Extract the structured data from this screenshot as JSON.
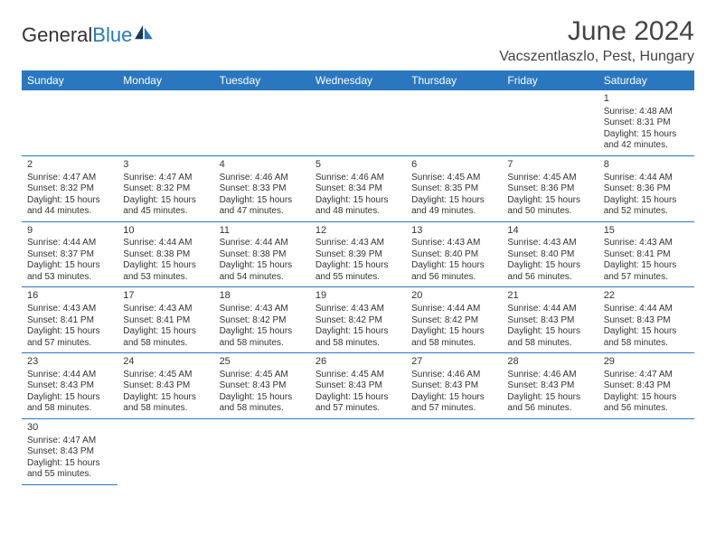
{
  "brand": {
    "part1": "General",
    "part2": "Blue"
  },
  "title": "June 2024",
  "location": "Vacszentlaszlo, Pest, Hungary",
  "colors": {
    "header_bg": "#2a77c0",
    "header_text": "#ffffff",
    "border": "#2a77c0",
    "blank_bg": "#f1f1f1",
    "text": "#333333"
  },
  "weekdays": [
    "Sunday",
    "Monday",
    "Tuesday",
    "Wednesday",
    "Thursday",
    "Friday",
    "Saturday"
  ],
  "weeks": [
    [
      null,
      null,
      null,
      null,
      null,
      null,
      {
        "n": "1",
        "sr": "Sunrise: 4:48 AM",
        "ss": "Sunset: 8:31 PM",
        "d1": "Daylight: 15 hours",
        "d2": "and 42 minutes."
      }
    ],
    [
      {
        "n": "2",
        "sr": "Sunrise: 4:47 AM",
        "ss": "Sunset: 8:32 PM",
        "d1": "Daylight: 15 hours",
        "d2": "and 44 minutes."
      },
      {
        "n": "3",
        "sr": "Sunrise: 4:47 AM",
        "ss": "Sunset: 8:32 PM",
        "d1": "Daylight: 15 hours",
        "d2": "and 45 minutes."
      },
      {
        "n": "4",
        "sr": "Sunrise: 4:46 AM",
        "ss": "Sunset: 8:33 PM",
        "d1": "Daylight: 15 hours",
        "d2": "and 47 minutes."
      },
      {
        "n": "5",
        "sr": "Sunrise: 4:46 AM",
        "ss": "Sunset: 8:34 PM",
        "d1": "Daylight: 15 hours",
        "d2": "and 48 minutes."
      },
      {
        "n": "6",
        "sr": "Sunrise: 4:45 AM",
        "ss": "Sunset: 8:35 PM",
        "d1": "Daylight: 15 hours",
        "d2": "and 49 minutes."
      },
      {
        "n": "7",
        "sr": "Sunrise: 4:45 AM",
        "ss": "Sunset: 8:36 PM",
        "d1": "Daylight: 15 hours",
        "d2": "and 50 minutes."
      },
      {
        "n": "8",
        "sr": "Sunrise: 4:44 AM",
        "ss": "Sunset: 8:36 PM",
        "d1": "Daylight: 15 hours",
        "d2": "and 52 minutes."
      }
    ],
    [
      {
        "n": "9",
        "sr": "Sunrise: 4:44 AM",
        "ss": "Sunset: 8:37 PM",
        "d1": "Daylight: 15 hours",
        "d2": "and 53 minutes."
      },
      {
        "n": "10",
        "sr": "Sunrise: 4:44 AM",
        "ss": "Sunset: 8:38 PM",
        "d1": "Daylight: 15 hours",
        "d2": "and 53 minutes."
      },
      {
        "n": "11",
        "sr": "Sunrise: 4:44 AM",
        "ss": "Sunset: 8:38 PM",
        "d1": "Daylight: 15 hours",
        "d2": "and 54 minutes."
      },
      {
        "n": "12",
        "sr": "Sunrise: 4:43 AM",
        "ss": "Sunset: 8:39 PM",
        "d1": "Daylight: 15 hours",
        "d2": "and 55 minutes."
      },
      {
        "n": "13",
        "sr": "Sunrise: 4:43 AM",
        "ss": "Sunset: 8:40 PM",
        "d1": "Daylight: 15 hours",
        "d2": "and 56 minutes."
      },
      {
        "n": "14",
        "sr": "Sunrise: 4:43 AM",
        "ss": "Sunset: 8:40 PM",
        "d1": "Daylight: 15 hours",
        "d2": "and 56 minutes."
      },
      {
        "n": "15",
        "sr": "Sunrise: 4:43 AM",
        "ss": "Sunset: 8:41 PM",
        "d1": "Daylight: 15 hours",
        "d2": "and 57 minutes."
      }
    ],
    [
      {
        "n": "16",
        "sr": "Sunrise: 4:43 AM",
        "ss": "Sunset: 8:41 PM",
        "d1": "Daylight: 15 hours",
        "d2": "and 57 minutes."
      },
      {
        "n": "17",
        "sr": "Sunrise: 4:43 AM",
        "ss": "Sunset: 8:41 PM",
        "d1": "Daylight: 15 hours",
        "d2": "and 58 minutes."
      },
      {
        "n": "18",
        "sr": "Sunrise: 4:43 AM",
        "ss": "Sunset: 8:42 PM",
        "d1": "Daylight: 15 hours",
        "d2": "and 58 minutes."
      },
      {
        "n": "19",
        "sr": "Sunrise: 4:43 AM",
        "ss": "Sunset: 8:42 PM",
        "d1": "Daylight: 15 hours",
        "d2": "and 58 minutes."
      },
      {
        "n": "20",
        "sr": "Sunrise: 4:44 AM",
        "ss": "Sunset: 8:42 PM",
        "d1": "Daylight: 15 hours",
        "d2": "and 58 minutes."
      },
      {
        "n": "21",
        "sr": "Sunrise: 4:44 AM",
        "ss": "Sunset: 8:43 PM",
        "d1": "Daylight: 15 hours",
        "d2": "and 58 minutes."
      },
      {
        "n": "22",
        "sr": "Sunrise: 4:44 AM",
        "ss": "Sunset: 8:43 PM",
        "d1": "Daylight: 15 hours",
        "d2": "and 58 minutes."
      }
    ],
    [
      {
        "n": "23",
        "sr": "Sunrise: 4:44 AM",
        "ss": "Sunset: 8:43 PM",
        "d1": "Daylight: 15 hours",
        "d2": "and 58 minutes."
      },
      {
        "n": "24",
        "sr": "Sunrise: 4:45 AM",
        "ss": "Sunset: 8:43 PM",
        "d1": "Daylight: 15 hours",
        "d2": "and 58 minutes."
      },
      {
        "n": "25",
        "sr": "Sunrise: 4:45 AM",
        "ss": "Sunset: 8:43 PM",
        "d1": "Daylight: 15 hours",
        "d2": "and 58 minutes."
      },
      {
        "n": "26",
        "sr": "Sunrise: 4:45 AM",
        "ss": "Sunset: 8:43 PM",
        "d1": "Daylight: 15 hours",
        "d2": "and 57 minutes."
      },
      {
        "n": "27",
        "sr": "Sunrise: 4:46 AM",
        "ss": "Sunset: 8:43 PM",
        "d1": "Daylight: 15 hours",
        "d2": "and 57 minutes."
      },
      {
        "n": "28",
        "sr": "Sunrise: 4:46 AM",
        "ss": "Sunset: 8:43 PM",
        "d1": "Daylight: 15 hours",
        "d2": "and 56 minutes."
      },
      {
        "n": "29",
        "sr": "Sunrise: 4:47 AM",
        "ss": "Sunset: 8:43 PM",
        "d1": "Daylight: 15 hours",
        "d2": "and 56 minutes."
      }
    ],
    [
      {
        "n": "30",
        "sr": "Sunrise: 4:47 AM",
        "ss": "Sunset: 8:43 PM",
        "d1": "Daylight: 15 hours",
        "d2": "and 55 minutes."
      },
      null,
      null,
      null,
      null,
      null,
      null
    ]
  ]
}
